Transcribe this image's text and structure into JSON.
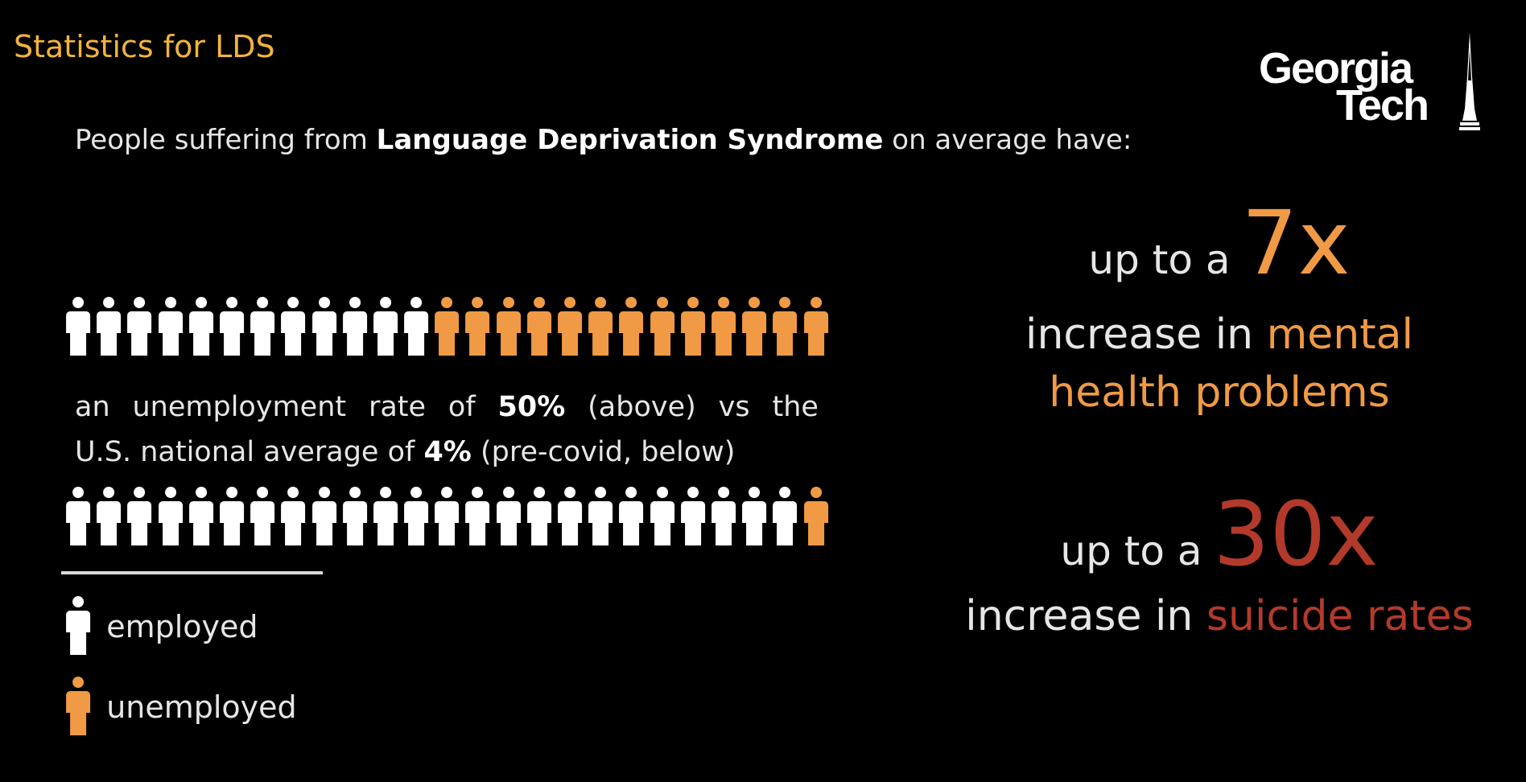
{
  "slide": {
    "title": "Statistics for LDS",
    "logo": {
      "line1": "Georgia",
      "line2": "Tech"
    },
    "intro": {
      "before": "People suffering from ",
      "bold": "Language Deprivation Syndrome",
      "after": " on average have:"
    },
    "unemployment": {
      "line1_words": [
        "an",
        "unemployment",
        "rate",
        "of",
        "50%",
        "(above)",
        "vs",
        "the"
      ],
      "line2_before": "U.S. national average of ",
      "line2_bold": "4%",
      "line2_after": " (pre-covid, below)"
    },
    "people_chart": {
      "top_row": {
        "employed": 12,
        "unemployed": 13,
        "unemployment_rate_percent": 50
      },
      "bottom_row": {
        "employed": 24,
        "unemployed": 1,
        "unemployment_rate_percent": 4
      }
    },
    "legend": {
      "employed": "employed",
      "unemployed": "unemployed"
    },
    "stat1": {
      "prefix": "up to a",
      "value": "7x",
      "body_before": "increase in ",
      "body_highlight": "mental health problems"
    },
    "stat2": {
      "prefix": "up to a",
      "value": "30x",
      "body_before": "increase in ",
      "body_highlight": "suicide rates"
    },
    "colors": {
      "background": "#000000",
      "title": "#f2b33d",
      "employed": "#ffffff",
      "unemployed": "#f09a45",
      "accent_orange": "#f09a45",
      "accent_red": "#b33a2a",
      "text": "#e6e6e6"
    }
  }
}
